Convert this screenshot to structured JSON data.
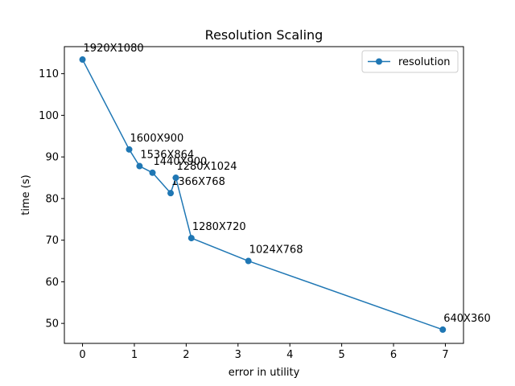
{
  "chart_data": {
    "type": "line",
    "title": "Resolution Scaling",
    "xlabel": "error in utility",
    "ylabel": "time (s)",
    "xlim": [
      -0.35,
      7.35
    ],
    "ylim": [
      45.2,
      116.5
    ],
    "xticks": [
      0,
      1,
      2,
      3,
      4,
      5,
      6,
      7
    ],
    "xtick_labels": [
      "0",
      "1",
      "2",
      "3",
      "4",
      "5",
      "6",
      "7"
    ],
    "yticks": [
      50,
      60,
      70,
      80,
      90,
      100,
      110
    ],
    "ytick_labels": [
      "50",
      "60",
      "70",
      "80",
      "90",
      "100",
      "110"
    ],
    "grid": false,
    "legend_position": "top-right",
    "series_color": "#1f77b4",
    "series": [
      {
        "name": "resolution",
        "x": [
          0.0,
          0.9,
          1.1,
          1.35,
          1.7,
          1.8,
          2.1,
          3.2,
          6.95
        ],
        "y": [
          113.4,
          91.8,
          87.8,
          86.2,
          81.3,
          85.0,
          70.5,
          65.0,
          48.5
        ],
        "labels": [
          "1920X1080",
          "1600X900",
          "1536X864",
          "1440X900",
          "1366X768",
          "1280X1024",
          "1280X720",
          "1024X768",
          "640X360"
        ]
      }
    ]
  }
}
